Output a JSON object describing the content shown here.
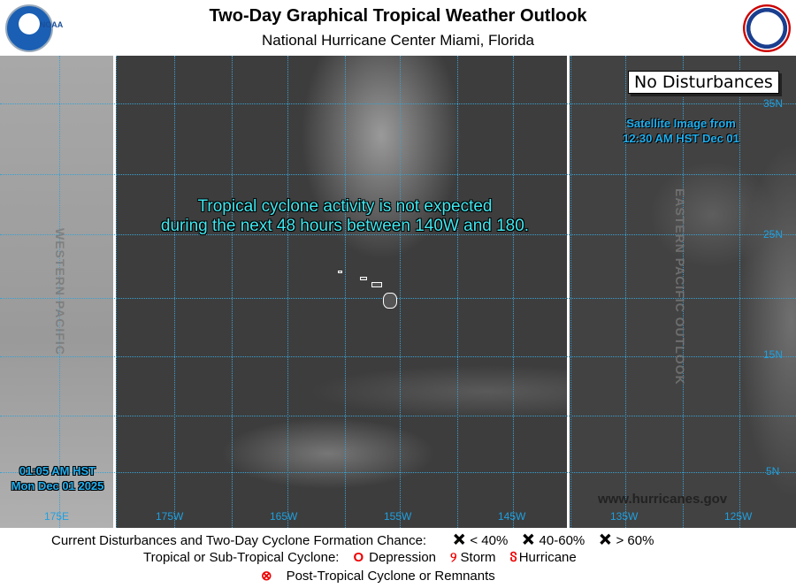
{
  "header": {
    "title": "Two-Day Graphical Tropical Weather Outlook",
    "subtitle": "National Hurricane Center  Miami, Florida",
    "left_logo": "NOAA",
    "right_logo": "NATIONAL WEATHER SERVICE"
  },
  "map": {
    "status_box": "No Disturbances",
    "satellite_time": [
      "Satellite Image from",
      "12:30 AM HST Dec 01"
    ],
    "issued_time": [
      "01:05 AM HST",
      "Mon Dec 01 2025"
    ],
    "notice": [
      "Tropical cyclone activity is not expected",
      "during the next 48 hours between 140W and 180."
    ],
    "western_label": "WESTERN PACIFIC",
    "eastern_label": "EASTERN PACIFIC OUTLOOK",
    "website": "www.hurricanes.gov",
    "lon_labels": [
      "175E",
      "175W",
      "165W",
      "155W",
      "145W",
      "135W",
      "125W"
    ],
    "lat_labels": [
      "35N",
      "25N",
      "15N",
      "5N"
    ],
    "grid_color": "#3aa0d0"
  },
  "legend": {
    "formation_label": "Current Disturbances and Two-Day Cyclone Formation Chance:",
    "chances": [
      {
        "label": "< 40%",
        "color": "#ffff00"
      },
      {
        "label": "40-60%",
        "color": "#ff9900"
      },
      {
        "label": "> 60%",
        "color": "#ff0000"
      }
    ],
    "cyclone_label": "Tropical or Sub-Tropical Cyclone:",
    "cyclone_types": [
      "Depression",
      "Storm",
      "Hurricane"
    ],
    "post_tropical": "Post-Tropical Cyclone or Remnants"
  }
}
